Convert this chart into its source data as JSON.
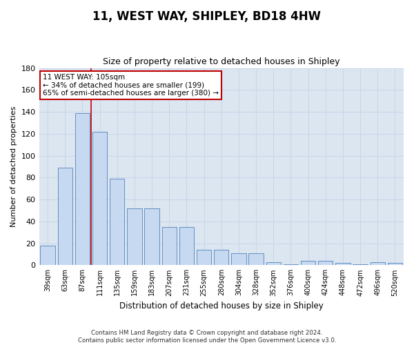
{
  "title": "11, WEST WAY, SHIPLEY, BD18 4HW",
  "subtitle": "Size of property relative to detached houses in Shipley",
  "xlabel": "Distribution of detached houses by size in Shipley",
  "ylabel": "Number of detached properties",
  "categories": [
    "39sqm",
    "63sqm",
    "87sqm",
    "111sqm",
    "135sqm",
    "159sqm",
    "183sqm",
    "207sqm",
    "231sqm",
    "255sqm",
    "280sqm",
    "304sqm",
    "328sqm",
    "352sqm",
    "376sqm",
    "400sqm",
    "424sqm",
    "448sqm",
    "472sqm",
    "496sqm",
    "520sqm"
  ],
  "values": [
    18,
    89,
    139,
    122,
    79,
    52,
    52,
    35,
    35,
    14,
    14,
    11,
    11,
    3,
    1,
    4,
    4,
    2,
    1,
    3,
    2
  ],
  "bar_color": "#c6d9f0",
  "bar_edge_color": "#4f81bd",
  "vline_color": "#c00000",
  "vline_pos": 2.5,
  "annotation_text": "11 WEST WAY: 105sqm\n← 34% of detached houses are smaller (199)\n65% of semi-detached houses are larger (380) →",
  "annotation_box_facecolor": "white",
  "annotation_box_edgecolor": "#c00000",
  "ylim": [
    0,
    180
  ],
  "yticks": [
    0,
    20,
    40,
    60,
    80,
    100,
    120,
    140,
    160,
    180
  ],
  "grid_color": "#c8d4e8",
  "footnote1": "Contains HM Land Registry data © Crown copyright and database right 2024.",
  "footnote2": "Contains public sector information licensed under the Open Government Licence v3.0.",
  "bg_color": "#ffffff",
  "plot_bg_color": "#dce6f1"
}
